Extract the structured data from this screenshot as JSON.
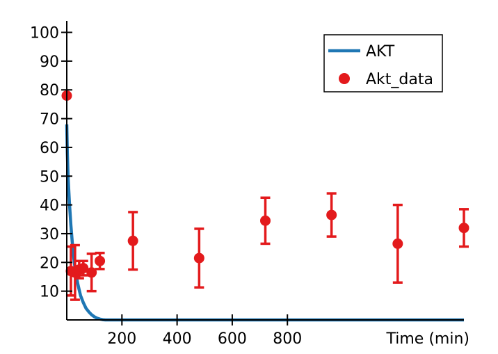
{
  "chart_data": {
    "type": "line",
    "title": "",
    "xlabel": "Time (min)",
    "ylabel": "",
    "xlim": [
      0,
      1440
    ],
    "ylim": [
      0,
      104
    ],
    "x_ticks": [
      200,
      400,
      600,
      800
    ],
    "y_ticks": [
      10,
      20,
      30,
      40,
      50,
      60,
      70,
      80,
      90,
      100
    ],
    "grid": false,
    "legend_position": "top-right",
    "legend": [
      {
        "label": "AKT",
        "kind": "line",
        "color": "#1f77b4"
      },
      {
        "label": "Akt_data",
        "kind": "marker",
        "color": "#e31a1c"
      }
    ],
    "series": [
      {
        "name": "AKT",
        "kind": "line",
        "color": "#1f77b4",
        "x": [
          0,
          2,
          5,
          10,
          15,
          20,
          25,
          30,
          35,
          40,
          45,
          50,
          60,
          70,
          80,
          90,
          100,
          110,
          120,
          130,
          140,
          160,
          200,
          400,
          600,
          800,
          1000,
          1200,
          1440
        ],
        "y": [
          68,
          58,
          49,
          40,
          33,
          27,
          22,
          18,
          15,
          12.5,
          10.5,
          8.5,
          6,
          4,
          2.8,
          1.8,
          1.1,
          0.6,
          0.3,
          0.1,
          0,
          0,
          0,
          0,
          0,
          0,
          0,
          0,
          0
        ]
      },
      {
        "name": "Akt_data",
        "kind": "errorbar",
        "color": "#e31a1c",
        "x": [
          0,
          15,
          30,
          45,
          60,
          90,
          120,
          240,
          480,
          720,
          960,
          1200,
          1440
        ],
        "y": [
          78,
          17,
          16.5,
          17.5,
          18,
          16.5,
          20.5,
          27.5,
          21.5,
          34.5,
          36.5,
          26.5,
          32
        ],
        "err": [
          0,
          8.5,
          9.5,
          3,
          2.5,
          6.5,
          2.8,
          10,
          10.2,
          8,
          7.5,
          13.5,
          6.5
        ]
      }
    ]
  }
}
